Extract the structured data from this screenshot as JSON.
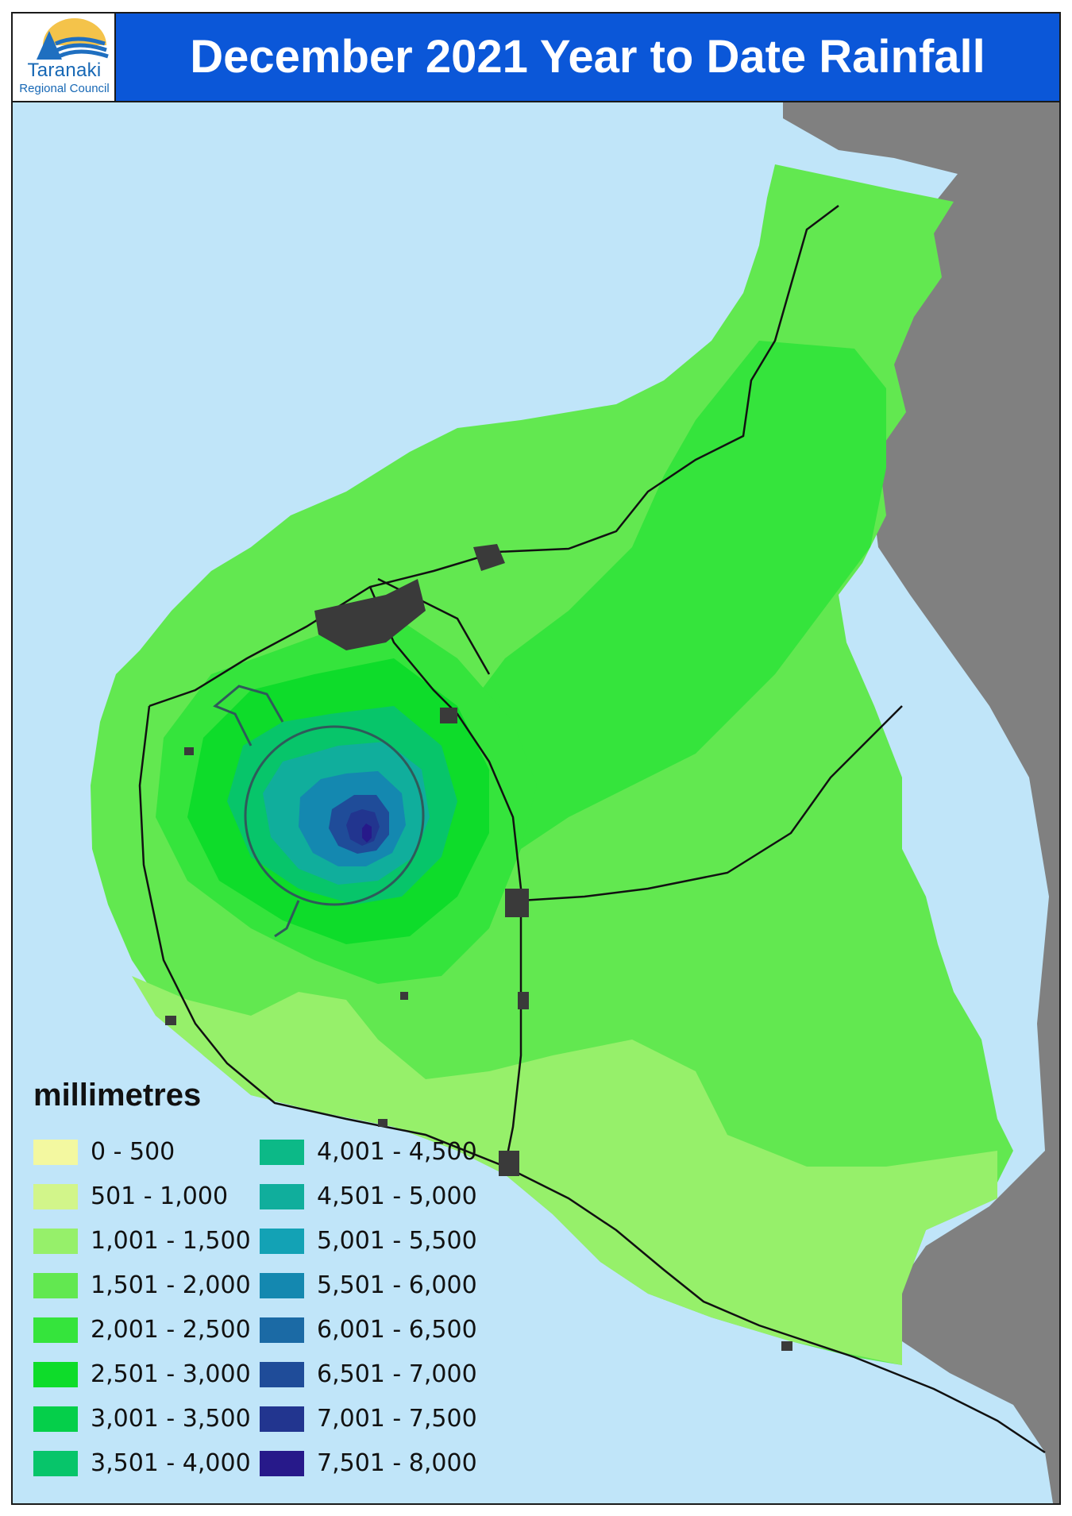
{
  "header": {
    "title": "December 2021 Year to Date Rainfall",
    "logo_line1": "Taranaki",
    "logo_line2": "Regional Council"
  },
  "colors": {
    "sea": "#c0e5f9",
    "land_outside": "#808080",
    "header_bg": "#0b57d8",
    "roads": "#111111",
    "towns": "#3a3a3a"
  },
  "legend": {
    "title": "millimetres",
    "items": [
      {
        "label": "0 - 500",
        "color": "#f3f8a0"
      },
      {
        "label": "501 - 1,000",
        "color": "#d2f58a"
      },
      {
        "label": "1,001 - 1,500",
        "color": "#96f06a"
      },
      {
        "label": "1,501 - 2,000",
        "color": "#62e850"
      },
      {
        "label": "2,001 - 2,500",
        "color": "#35e43c"
      },
      {
        "label": "2,501 - 3,000",
        "color": "#0edc2a"
      },
      {
        "label": "3,001 - 3,500",
        "color": "#05cf4a"
      },
      {
        "label": "3,501 - 4,000",
        "color": "#07c56a"
      },
      {
        "label": "4,001 - 4,500",
        "color": "#0cb987"
      },
      {
        "label": "4,501 - 5,000",
        "color": "#10ae9c"
      },
      {
        "label": "5,001 - 5,500",
        "color": "#13a2b5"
      },
      {
        "label": "5,501 - 6,000",
        "color": "#1488b0"
      },
      {
        "label": "6,001 - 6,500",
        "color": "#1b6aa5"
      },
      {
        "label": "6,501 - 7,000",
        "color": "#1f4c99"
      },
      {
        "label": "7,001 - 7,500",
        "color": "#22358f"
      },
      {
        "label": "7,501 - 8,000",
        "color": "#27198a"
      }
    ]
  }
}
